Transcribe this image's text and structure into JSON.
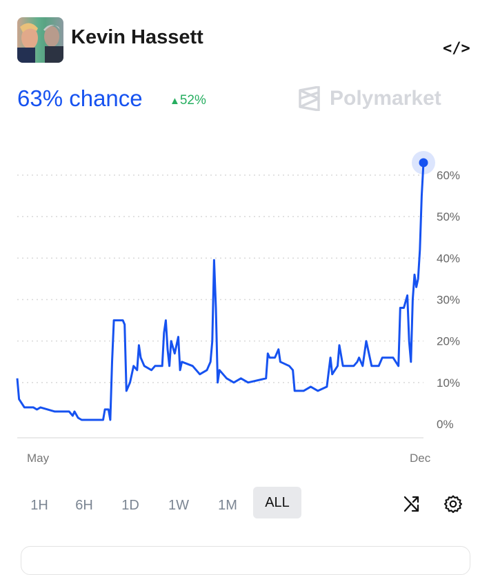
{
  "header": {
    "title": "Kevin Hassett",
    "embed_icon": "code-icon"
  },
  "summary": {
    "chance": "63% chance",
    "change": "52%",
    "change_direction": "up",
    "brand": "Polymarket"
  },
  "colors": {
    "line": "#1652f0",
    "up": "#27ae60",
    "brand": "#d5d7dc"
  },
  "chart_data": {
    "type": "line",
    "title": "",
    "xlabel": "",
    "ylabel": "",
    "x_tick_labels": [
      {
        "label": "May",
        "date": "2025-05-01"
      },
      {
        "label": "Dec",
        "date": "2025-12-01"
      }
    ],
    "y_ticks": [
      0,
      10,
      20,
      30,
      40,
      50,
      60
    ],
    "y_tick_labels": [
      "0%",
      "10%",
      "20%",
      "30%",
      "40%",
      "50%",
      "60%"
    ],
    "ylim": [
      0,
      60
    ],
    "grid": "horizontal dotted",
    "series": [
      {
        "values": [
          [
            "2025-04-19",
            11
          ],
          [
            "2025-04-20",
            6
          ],
          [
            "2025-04-23",
            4
          ],
          [
            "2025-04-28",
            4
          ],
          [
            "2025-04-30",
            3.5
          ],
          [
            "2025-05-02",
            4
          ],
          [
            "2025-05-06",
            3.5
          ],
          [
            "2025-05-10",
            3
          ],
          [
            "2025-05-18",
            3
          ],
          [
            "2025-05-20",
            2
          ],
          [
            "2025-05-21",
            3
          ],
          [
            "2025-05-23",
            1.5
          ],
          [
            "2025-05-25",
            1
          ],
          [
            "2025-06-06",
            1
          ],
          [
            "2025-06-07",
            3.5
          ],
          [
            "2025-06-09",
            3.5
          ],
          [
            "2025-06-10",
            1
          ],
          [
            "2025-06-11",
            15
          ],
          [
            "2025-06-12",
            25
          ],
          [
            "2025-06-17",
            25
          ],
          [
            "2025-06-18",
            24
          ],
          [
            "2025-06-19",
            8
          ],
          [
            "2025-06-21",
            10
          ],
          [
            "2025-06-22",
            12
          ],
          [
            "2025-06-23",
            14
          ],
          [
            "2025-06-25",
            13
          ],
          [
            "2025-06-26",
            19
          ],
          [
            "2025-06-27",
            16
          ],
          [
            "2025-06-29",
            14
          ],
          [
            "2025-07-03",
            13
          ],
          [
            "2025-07-05",
            14
          ],
          [
            "2025-07-09",
            14
          ],
          [
            "2025-07-10",
            22
          ],
          [
            "2025-07-11",
            25
          ],
          [
            "2025-07-12",
            18
          ],
          [
            "2025-07-13",
            14
          ],
          [
            "2025-07-14",
            20
          ],
          [
            "2025-07-16",
            17
          ],
          [
            "2025-07-18",
            21
          ],
          [
            "2025-07-19",
            13
          ],
          [
            "2025-07-20",
            15
          ],
          [
            "2025-07-26",
            14
          ],
          [
            "2025-07-28",
            13
          ],
          [
            "2025-07-30",
            12
          ],
          [
            "2025-08-03",
            13
          ],
          [
            "2025-08-05",
            15
          ],
          [
            "2025-08-06",
            20
          ],
          [
            "2025-08-07",
            39.5
          ],
          [
            "2025-08-08",
            28
          ],
          [
            "2025-08-09",
            10
          ],
          [
            "2025-08-10",
            13
          ],
          [
            "2025-08-14",
            11
          ],
          [
            "2025-08-18",
            10
          ],
          [
            "2025-08-22",
            11
          ],
          [
            "2025-08-26",
            10
          ],
          [
            "2025-09-05",
            11
          ],
          [
            "2025-09-06",
            17
          ],
          [
            "2025-09-07",
            16
          ],
          [
            "2025-09-10",
            16
          ],
          [
            "2025-09-12",
            18
          ],
          [
            "2025-09-13",
            15
          ],
          [
            "2025-09-18",
            14
          ],
          [
            "2025-09-20",
            13
          ],
          [
            "2025-09-21",
            8
          ],
          [
            "2025-09-26",
            8
          ],
          [
            "2025-09-30",
            9
          ],
          [
            "2025-10-04",
            8
          ],
          [
            "2025-10-09",
            9
          ],
          [
            "2025-10-11",
            16
          ],
          [
            "2025-10-12",
            12
          ],
          [
            "2025-10-15",
            14
          ],
          [
            "2025-10-16",
            19
          ],
          [
            "2025-10-18",
            14
          ],
          [
            "2025-10-24",
            14
          ],
          [
            "2025-10-26",
            15
          ],
          [
            "2025-10-27",
            16
          ],
          [
            "2025-10-29",
            14
          ],
          [
            "2025-10-31",
            20
          ],
          [
            "2025-11-01",
            18
          ],
          [
            "2025-11-03",
            14
          ],
          [
            "2025-11-07",
            14
          ],
          [
            "2025-11-09",
            16
          ],
          [
            "2025-11-15",
            16
          ],
          [
            "2025-11-18",
            14
          ],
          [
            "2025-11-19",
            28
          ],
          [
            "2025-11-21",
            28
          ],
          [
            "2025-11-23",
            31
          ],
          [
            "2025-11-24",
            20
          ],
          [
            "2025-11-25",
            15
          ],
          [
            "2025-11-26",
            30
          ],
          [
            "2025-11-27",
            36
          ],
          [
            "2025-11-28",
            33
          ],
          [
            "2025-11-29",
            35
          ],
          [
            "2025-11-30",
            42
          ],
          [
            "2025-12-01",
            55
          ],
          [
            "2025-12-02",
            63
          ]
        ]
      }
    ]
  },
  "ranges": [
    {
      "label": "1H"
    },
    {
      "label": "6H"
    },
    {
      "label": "1D"
    },
    {
      "label": "1W"
    },
    {
      "label": "1M"
    },
    {
      "label": "ALL",
      "active": true
    }
  ],
  "tools": {
    "shuffle_icon": "shuffle-icon",
    "settings_icon": "gear-icon"
  }
}
